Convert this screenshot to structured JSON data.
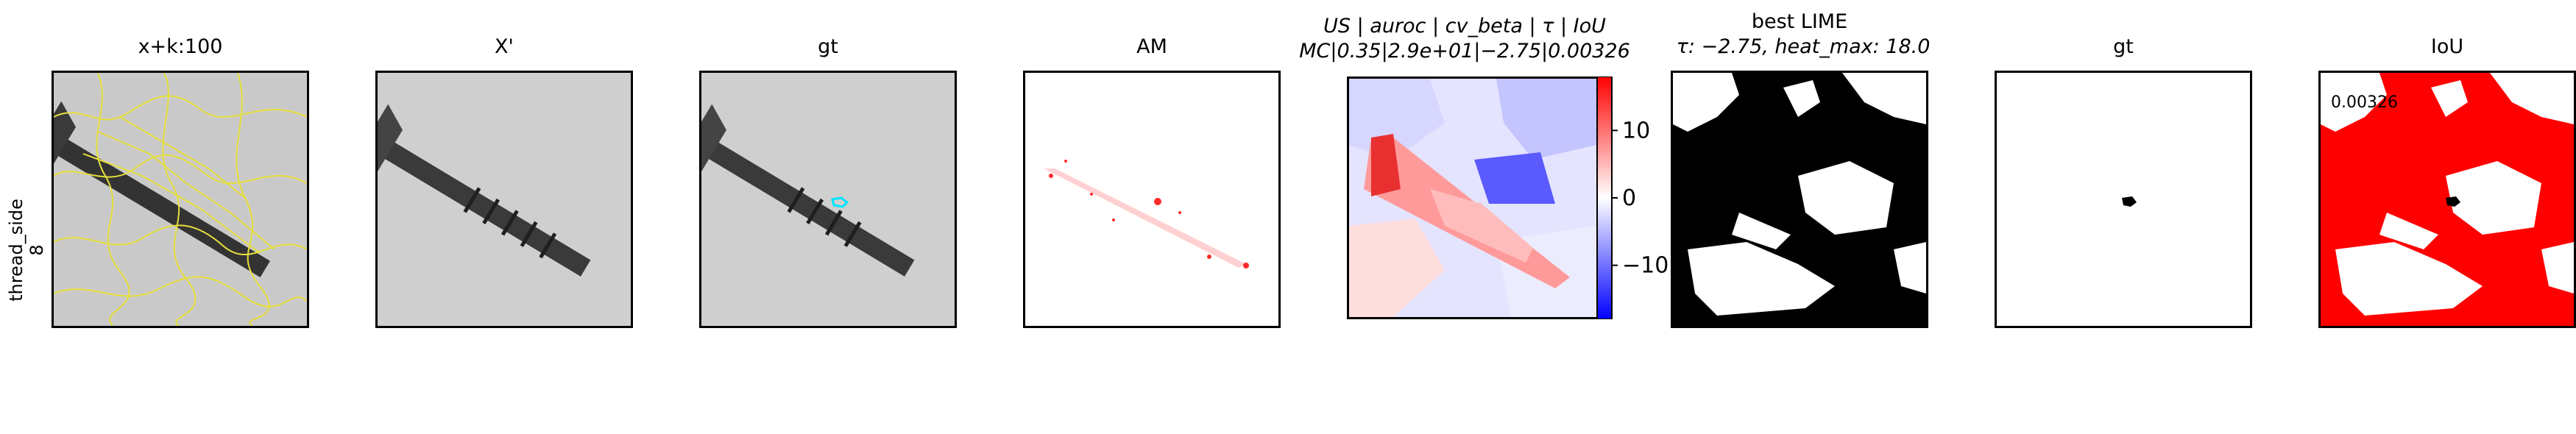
{
  "row_label": {
    "line1": "thread_side",
    "line2": "8"
  },
  "panels": [
    {
      "id": "superpixels",
      "title": "x+k:100"
    },
    {
      "id": "x-prime",
      "title": "X'"
    },
    {
      "id": "gt-overlay",
      "title": "gt"
    },
    {
      "id": "am",
      "title": "AM"
    },
    {
      "id": "metrics",
      "title_line1": "US | auroc | cv_beta | τ | IoU",
      "title_line2": "MC|0.35|2.9e+01|−2.75|0.00326"
    },
    {
      "id": "best-lime",
      "title_line1": "best LIME",
      "title_line2": "τ: −2.75, heat_max: 18.0"
    },
    {
      "id": "gt-mask",
      "title": "gt"
    },
    {
      "id": "iou",
      "title": "IoU",
      "annotation": "0.00326"
    }
  ],
  "colorbar": {
    "colormap": "bwr",
    "range": [
      -18,
      18
    ],
    "ticks": [
      {
        "value": 10,
        "label": "10"
      },
      {
        "value": 0,
        "label": "0"
      },
      {
        "value": -10,
        "label": "−10"
      }
    ]
  },
  "colors": {
    "superpixel_boundary": "#e6e03c",
    "gt_contour": "#00e5ff",
    "am_points": "#ff2a2a",
    "iou_fill": "#ff0000"
  }
}
